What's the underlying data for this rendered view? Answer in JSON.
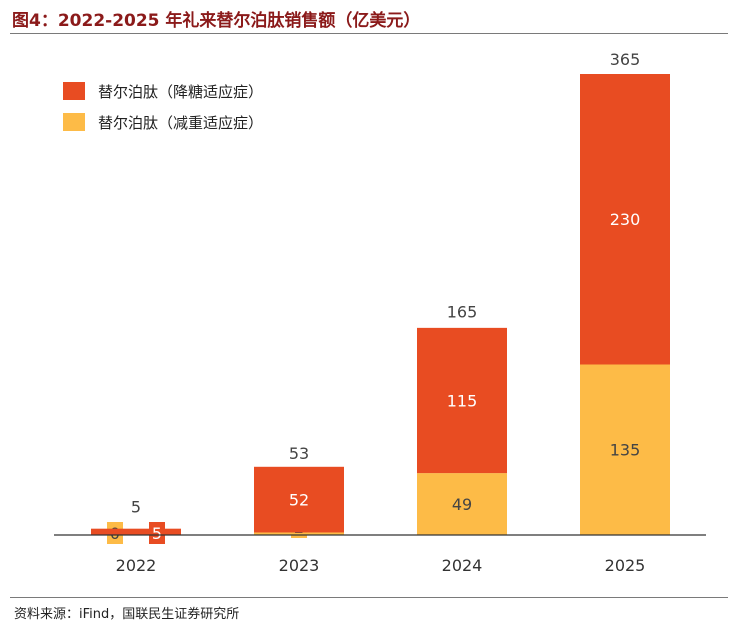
{
  "title": "图4：2022-2025 年礼来替尔泊肽销售额（亿美元）",
  "source": "资料来源：iFind，国联民生证券研究所",
  "colors": {
    "diabetes": "#e84c22",
    "obesity": "#fdbb47",
    "title": "#8b1a1a"
  },
  "chart_data": {
    "type": "bar",
    "stacked": true,
    "title": "图4：2022-2025 年礼来替尔泊肽销售额（亿美元）",
    "categories": [
      "2022",
      "2023",
      "2024",
      "2025"
    ],
    "series": [
      {
        "name": "替尔泊肽（减重适应症）",
        "values": [
          0,
          2,
          49,
          135
        ]
      },
      {
        "name": "替尔泊肽（降糖适应症）",
        "values": [
          5,
          52,
          115,
          230
        ]
      }
    ],
    "totals": [
      5,
      53,
      165,
      365
    ],
    "ylim": [
      0,
      380
    ],
    "grid": false,
    "legend": "top-left",
    "xlabel": "",
    "ylabel": ""
  }
}
